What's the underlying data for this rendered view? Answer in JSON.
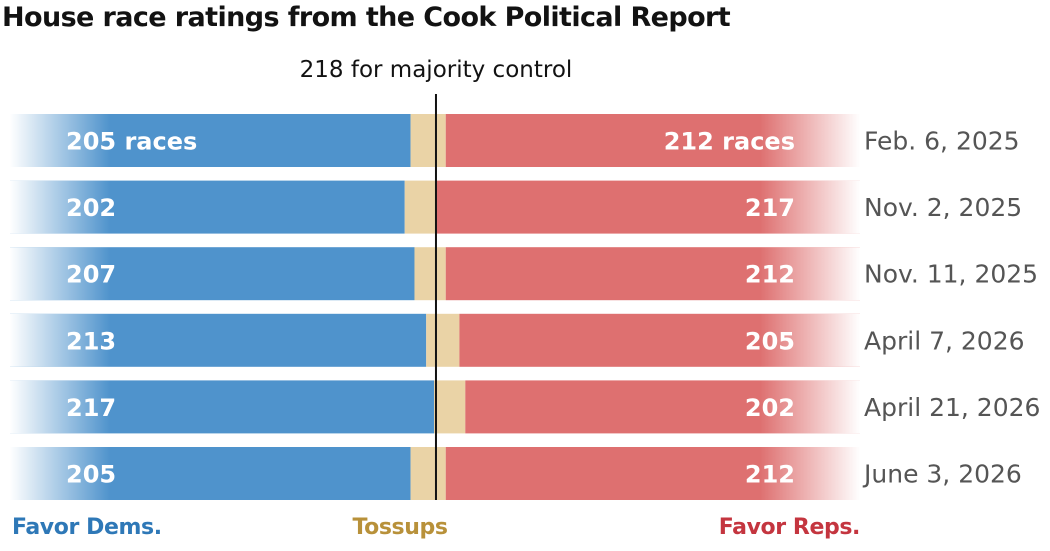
{
  "title": "House race ratings from the Cook Political Report",
  "chart_data": {
    "type": "bar",
    "stacked": true,
    "orientation": "horizontal",
    "title": "House race ratings from the Cook Political Report",
    "categories": [
      "Feb. 6, 2025",
      "Nov. 2, 2025",
      "Nov. 11, 2025",
      "April 7, 2026",
      "April 21, 2026",
      "June 3, 2026"
    ],
    "series": [
      {
        "name": "Favor Dems.",
        "color": "#4f93cc",
        "values": [
          205,
          202,
          207,
          213,
          217,
          205
        ],
        "labels": [
          "205 races",
          "202",
          "207",
          "213",
          "217",
          "205"
        ]
      },
      {
        "name": "Tossups",
        "color": "#ead3a6",
        "values": [
          18,
          16,
          16,
          17,
          16,
          18
        ]
      },
      {
        "name": "Favor Reps.",
        "color": "#de7070",
        "values": [
          212,
          217,
          212,
          205,
          202,
          212
        ],
        "labels": [
          "212 races",
          "217",
          "212",
          "205",
          "202",
          "212"
        ]
      }
    ],
    "total": 435,
    "reference_line": {
      "value": 218,
      "label": "218 for majority control"
    },
    "legend_colors": {
      "dems": "#2e78b7",
      "tossups": "#b8913a",
      "reps": "#c4353f"
    }
  }
}
